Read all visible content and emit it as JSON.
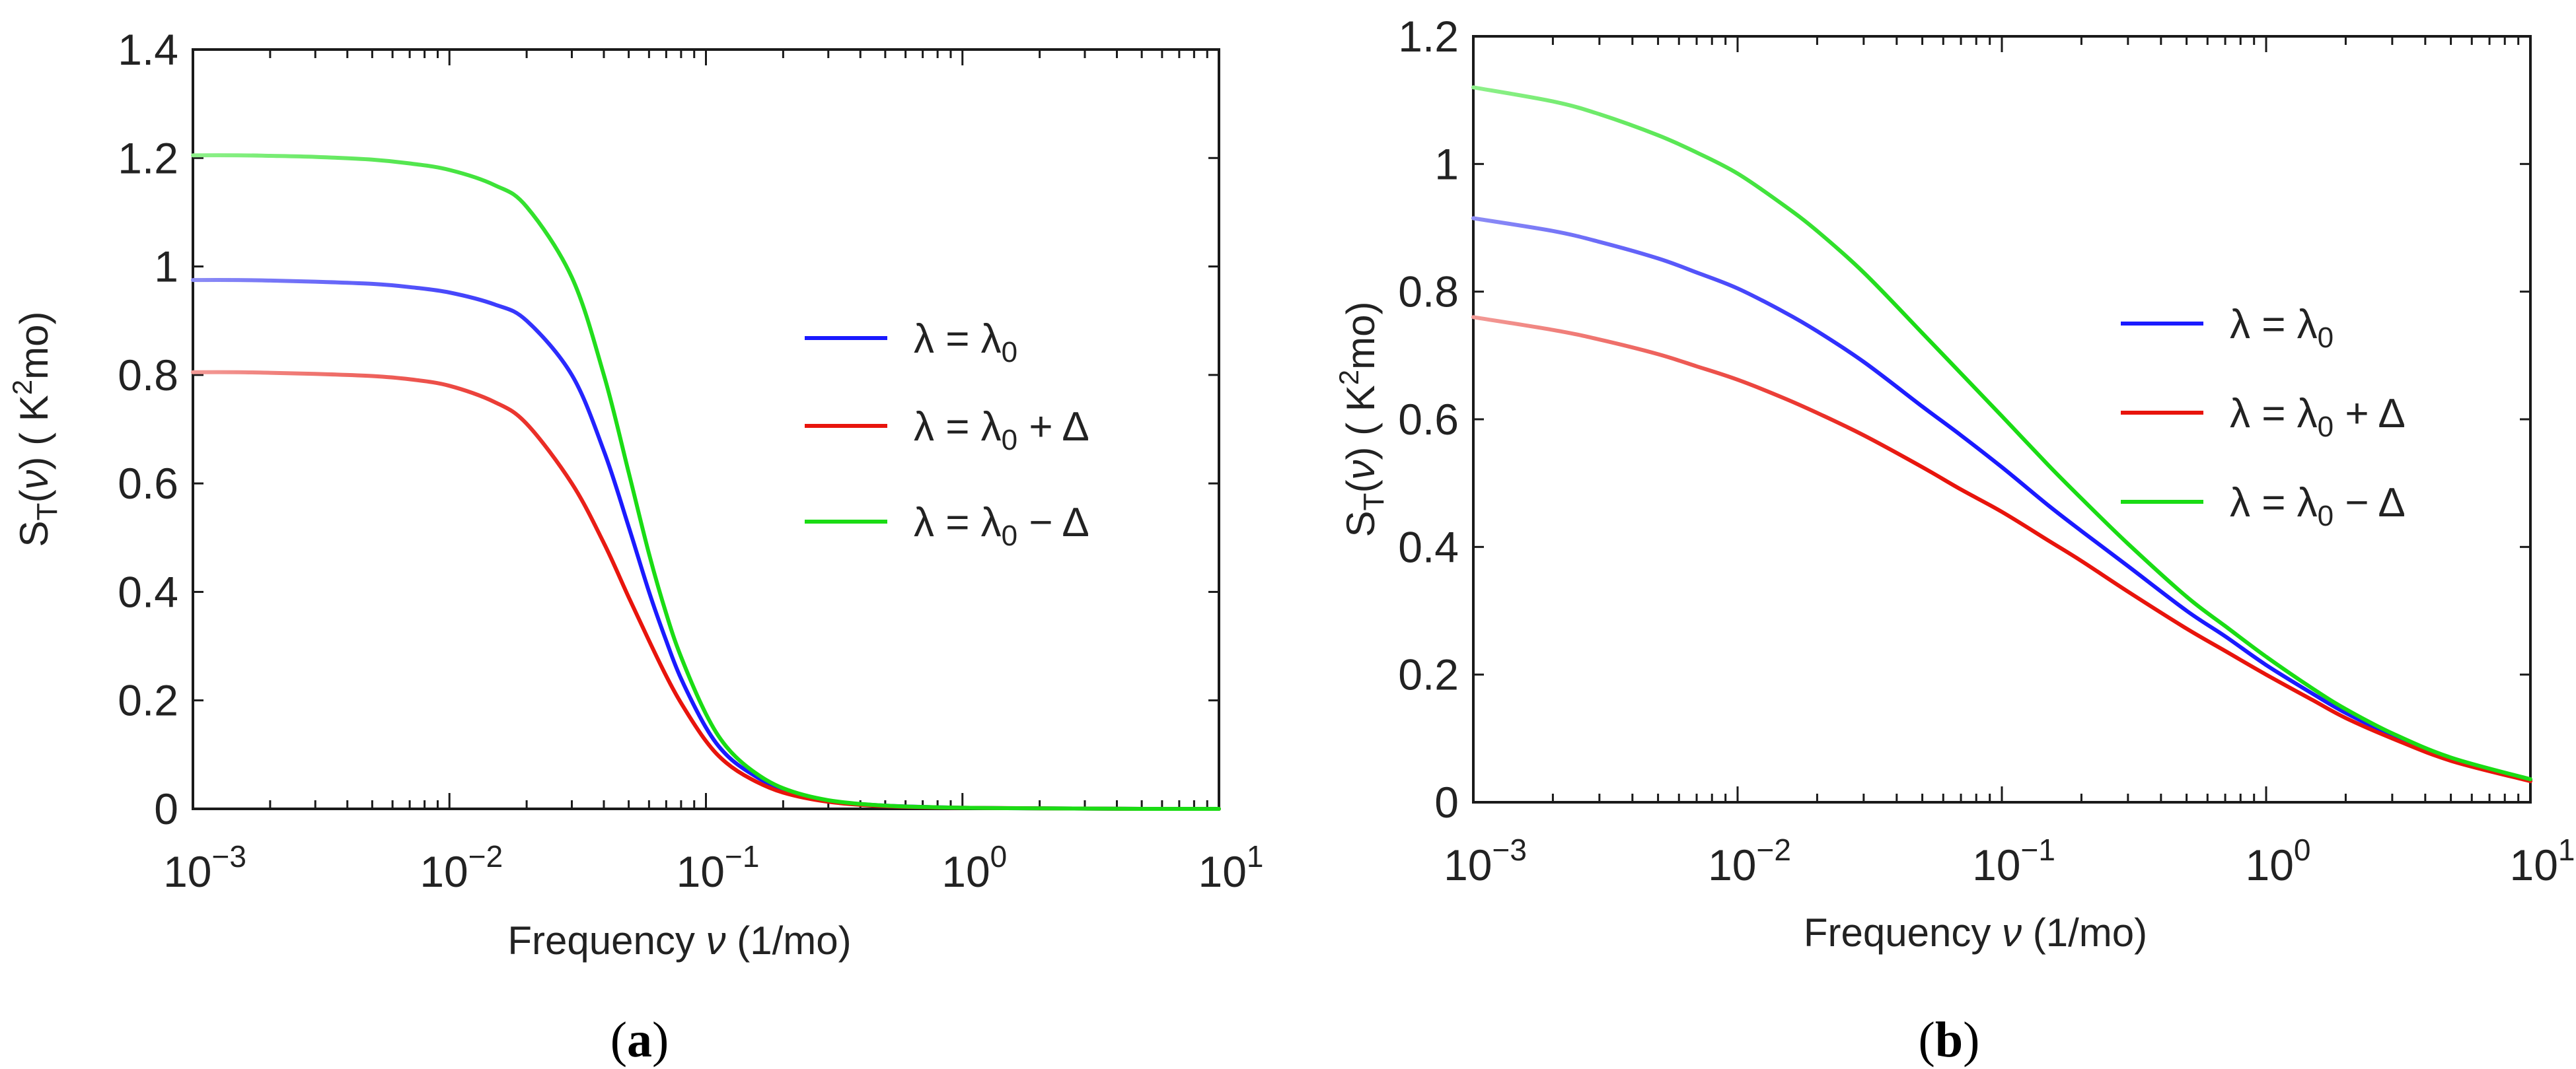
{
  "panels": [
    {
      "caption_open": "(",
      "caption_letter": "a",
      "caption_close": ")",
      "chart_data": {
        "type": "line",
        "xscale": "log",
        "xlim": [
          0.001,
          10
        ],
        "ylim": [
          0,
          1.4
        ],
        "x_ticks": [
          {
            "base": "10",
            "exp": "−3",
            "value": 0.001
          },
          {
            "base": "10",
            "exp": "−2",
            "value": 0.01
          },
          {
            "base": "10",
            "exp": "−1",
            "value": 0.1
          },
          {
            "base": "10",
            "exp": "0",
            "value": 1
          },
          {
            "base": "10",
            "exp": "1",
            "value": 10
          }
        ],
        "y_ticks": [
          "0",
          "0.2",
          "0.4",
          "0.6",
          "0.8",
          "1",
          "1.2",
          "1.4"
        ],
        "y_tick_values": [
          0,
          0.2,
          0.4,
          0.6,
          0.8,
          1.0,
          1.2,
          1.4
        ],
        "xlabel": {
          "pre": "Frequency ",
          "var": "ν",
          "post": " (1/mo)"
        },
        "ylabel": {
          "s": "S",
          "sub": "T",
          "open": "(",
          "var": "ν",
          "close": ")",
          "unit_open": " ( K",
          "sup": "2",
          "unit_close": "mo)"
        },
        "legend_position": "center-right",
        "series": [
          {
            "name": "λ = λ₀",
            "color": "#1a1aff",
            "lightcolor": "#8c8cf5",
            "x": [
              0.001,
              0.0015,
              0.002,
              0.003,
              0.005,
              0.007,
              0.01,
              0.015,
              0.02,
              0.03,
              0.04,
              0.05,
              0.06,
              0.07,
              0.08,
              0.1,
              0.12,
              0.15,
              0.2,
              0.3,
              0.5,
              1,
              2,
              5,
              10
            ],
            "y": [
              0.975,
              0.975,
              0.974,
              0.972,
              0.968,
              0.962,
              0.952,
              0.93,
              0.9,
              0.8,
              0.66,
              0.52,
              0.4,
              0.31,
              0.24,
              0.15,
              0.1,
              0.065,
              0.035,
              0.015,
              0.006,
              0.002,
              0.001,
              0.0,
              0.0
            ]
          },
          {
            "name": "λ = λ₀ + Δ",
            "color": "#e8140c",
            "lightcolor": "#f29a96",
            "x": [
              0.001,
              0.0015,
              0.002,
              0.003,
              0.005,
              0.007,
              0.01,
              0.015,
              0.02,
              0.03,
              0.04,
              0.05,
              0.06,
              0.07,
              0.08,
              0.1,
              0.12,
              0.15,
              0.2,
              0.3,
              0.5,
              1,
              2,
              5,
              10
            ],
            "y": [
              0.805,
              0.805,
              0.804,
              0.802,
              0.798,
              0.792,
              0.78,
              0.75,
              0.71,
              0.6,
              0.49,
              0.39,
              0.31,
              0.245,
              0.195,
              0.125,
              0.085,
              0.055,
              0.03,
              0.013,
              0.005,
              0.002,
              0.001,
              0.0,
              0.0
            ]
          },
          {
            "name": "λ = λ₀ − Δ",
            "color": "#1adc14",
            "lightcolor": "#8ef08a",
            "x": [
              0.001,
              0.0015,
              0.002,
              0.003,
              0.005,
              0.007,
              0.01,
              0.015,
              0.02,
              0.03,
              0.04,
              0.05,
              0.06,
              0.07,
              0.08,
              0.1,
              0.12,
              0.15,
              0.2,
              0.3,
              0.5,
              1,
              2,
              5,
              10
            ],
            "y": [
              1.205,
              1.205,
              1.204,
              1.202,
              1.197,
              1.19,
              1.178,
              1.15,
              1.11,
              0.98,
              0.8,
              0.62,
              0.47,
              0.36,
              0.28,
              0.175,
              0.115,
              0.072,
              0.038,
              0.016,
              0.006,
              0.002,
              0.001,
              0.0,
              0.0
            ]
          }
        ],
        "legend_labels": [
          {
            "lhs": "λ = λ",
            "sub": "0",
            "rest": ""
          },
          {
            "lhs": "λ = λ",
            "sub": "0",
            "rest": "  +  Δ"
          },
          {
            "lhs": "λ = λ",
            "sub": "0",
            "rest": "  −  Δ"
          }
        ]
      }
    },
    {
      "caption_open": "(",
      "caption_letter": "b",
      "caption_close": ")",
      "chart_data": {
        "type": "line",
        "xscale": "log",
        "xlim": [
          0.001,
          10
        ],
        "ylim": [
          0,
          1.2
        ],
        "x_ticks": [
          {
            "base": "10",
            "exp": "−3",
            "value": 0.001
          },
          {
            "base": "10",
            "exp": "−2",
            "value": 0.01
          },
          {
            "base": "10",
            "exp": "−1",
            "value": 0.1
          },
          {
            "base": "10",
            "exp": "0",
            "value": 1
          },
          {
            "base": "10",
            "exp": "1",
            "value": 10
          }
        ],
        "y_ticks": [
          "0",
          "0.2",
          "0.4",
          "0.6",
          "0.8",
          "1",
          "1.2"
        ],
        "y_tick_values": [
          0,
          0.2,
          0.4,
          0.6,
          0.8,
          1.0,
          1.2
        ],
        "xlabel": {
          "pre": "Frequency ",
          "var": "ν",
          "post": " (1/mo)"
        },
        "ylabel": {
          "s": "S",
          "sub": "T",
          "open": "(",
          "var": "ν",
          "close": ")",
          "unit_open": " ( K",
          "sup": "2",
          "unit_close": "mo)"
        },
        "legend_position": "center-right",
        "series": [
          {
            "name": "λ = λ₀",
            "color": "#1a1aff",
            "lightcolor": "#8c8cf5",
            "x": [
              0.001,
              0.002,
              0.003,
              0.005,
              0.007,
              0.01,
              0.015,
              0.02,
              0.03,
              0.05,
              0.07,
              0.1,
              0.15,
              0.2,
              0.3,
              0.5,
              0.7,
              1,
              1.5,
              2,
              3,
              5,
              10
            ],
            "y": [
              0.915,
              0.895,
              0.878,
              0.852,
              0.83,
              0.805,
              0.768,
              0.738,
              0.69,
              0.62,
              0.575,
              0.525,
              0.465,
              0.425,
              0.37,
              0.3,
              0.26,
              0.215,
              0.17,
              0.14,
              0.105,
              0.068,
              0.035
            ]
          },
          {
            "name": "λ = λ₀ + Δ",
            "color": "#e8140c",
            "lightcolor": "#f29a96",
            "x": [
              0.001,
              0.002,
              0.003,
              0.005,
              0.007,
              0.01,
              0.015,
              0.02,
              0.03,
              0.05,
              0.07,
              0.1,
              0.15,
              0.2,
              0.3,
              0.5,
              0.7,
              1,
              1.5,
              2,
              3,
              5,
              10
            ],
            "y": [
              0.76,
              0.74,
              0.725,
              0.702,
              0.683,
              0.662,
              0.633,
              0.61,
              0.575,
              0.525,
              0.49,
              0.455,
              0.41,
              0.378,
              0.33,
              0.272,
              0.237,
              0.2,
              0.16,
              0.132,
              0.1,
              0.065,
              0.033
            ]
          },
          {
            "name": "λ = λ₀ − Δ",
            "color": "#1adc14",
            "lightcolor": "#8ef08a",
            "x": [
              0.001,
              0.002,
              0.003,
              0.005,
              0.007,
              0.01,
              0.015,
              0.02,
              0.03,
              0.05,
              0.07,
              0.1,
              0.15,
              0.2,
              0.3,
              0.5,
              0.7,
              1,
              1.5,
              2,
              3,
              5,
              10
            ],
            "y": [
              1.12,
              1.098,
              1.078,
              1.045,
              1.018,
              0.985,
              0.935,
              0.895,
              0.83,
              0.735,
              0.672,
              0.605,
              0.528,
              0.476,
              0.405,
              0.322,
              0.276,
              0.228,
              0.178,
              0.146,
              0.108,
              0.07,
              0.036
            ]
          }
        ],
        "legend_labels": [
          {
            "lhs": "λ = λ",
            "sub": "0",
            "rest": ""
          },
          {
            "lhs": "λ = λ",
            "sub": "0",
            "rest": "  +  Δ"
          },
          {
            "lhs": "λ = λ",
            "sub": "0",
            "rest": "  −  Δ"
          }
        ]
      }
    }
  ]
}
